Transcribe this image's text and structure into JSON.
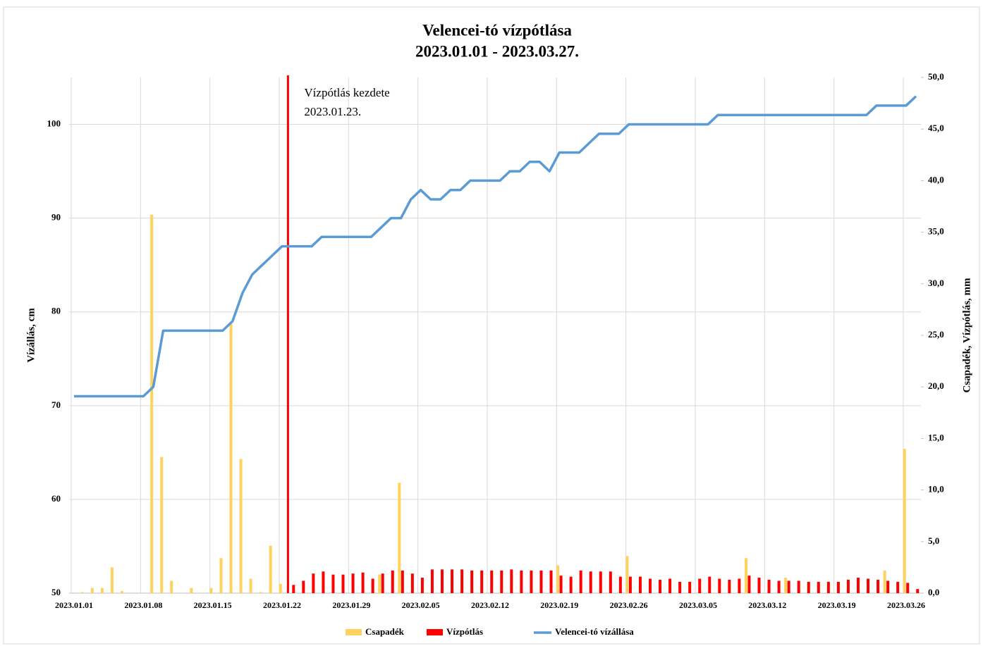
{
  "chart_data": {
    "type": "combo",
    "title": [
      "Velencei-tó vízpótlása",
      "2023.01.01 - 2023.03.27."
    ],
    "ylabel": "Vízállás, cm",
    "y2label": "Csapadék, Vízpótlás, mm",
    "annotation": [
      "Vízpótlás kezdete",
      "2023.01.23."
    ],
    "categories": [
      "2023.01.01",
      null,
      null,
      null,
      null,
      null,
      null,
      "2023.01.08",
      null,
      null,
      null,
      null,
      null,
      null,
      "2023.01.15",
      null,
      null,
      null,
      null,
      null,
      null,
      "2023.01.22",
      null,
      null,
      null,
      null,
      null,
      null,
      "2023.01.29",
      null,
      null,
      null,
      null,
      null,
      null,
      "2023.02.05",
      null,
      null,
      null,
      null,
      null,
      null,
      "2023.02.12",
      null,
      null,
      null,
      null,
      null,
      null,
      "2023.02.19",
      null,
      null,
      null,
      null,
      null,
      null,
      "2023.02.26",
      null,
      null,
      null,
      null,
      null,
      null,
      "2023.03.05",
      null,
      null,
      null,
      null,
      null,
      null,
      "2023.03.12",
      null,
      null,
      null,
      null,
      null,
      null,
      "2023.03.19",
      null,
      null,
      null,
      null,
      null,
      null,
      "2023.03.26",
      null
    ],
    "series": [
      {
        "name": "Csapadék",
        "type": "bar",
        "axis": "y2",
        "color": "#ffd25e",
        "values": [
          0,
          0.1,
          0.5,
          0.5,
          2.5,
          0.2,
          0,
          0,
          36.7,
          13.2,
          1.2,
          0,
          0.5,
          0,
          0.5,
          3.4,
          26.1,
          13,
          1.4,
          0.1,
          4.6,
          0.9,
          0,
          0,
          0,
          0,
          0,
          0,
          0,
          0,
          0,
          1.8,
          0,
          10.7,
          0,
          0,
          0,
          0,
          0,
          0,
          0,
          0,
          0,
          0,
          0,
          0,
          0,
          0,
          0,
          2.7,
          0,
          0,
          0,
          0,
          0,
          0,
          3.6,
          0,
          0,
          0,
          0,
          0,
          0,
          0,
          0,
          0,
          0,
          0,
          3.4,
          0,
          0,
          0,
          1.5,
          0,
          0,
          0,
          0,
          0,
          0,
          0,
          0,
          0,
          2.2,
          0,
          14,
          0
        ]
      },
      {
        "name": "Vízpótlás",
        "type": "bar",
        "axis": "y2",
        "color": "#ff0000",
        "values": [
          0,
          0,
          0,
          0,
          0,
          0,
          0,
          0,
          0,
          0,
          0,
          0,
          0,
          0,
          0,
          0,
          0,
          0,
          0,
          0,
          0,
          0,
          0.8,
          1.2,
          1.9,
          2.1,
          1.8,
          1.8,
          1.9,
          2.0,
          1.4,
          1.9,
          2.2,
          2.2,
          1.9,
          1.5,
          2.3,
          2.3,
          2.3,
          2.3,
          2.2,
          2.2,
          2.2,
          2.2,
          2.3,
          2.2,
          2.2,
          2.2,
          2.2,
          1.7,
          1.6,
          2.2,
          2.1,
          2.1,
          2.1,
          1.6,
          1.6,
          1.6,
          1.4,
          1.3,
          1.4,
          1.1,
          1.1,
          1.4,
          1.6,
          1.4,
          1.3,
          1.4,
          1.7,
          1.5,
          1.3,
          1.2,
          1.2,
          1.2,
          1.1,
          1.1,
          1.1,
          1.1,
          1.3,
          1.5,
          1.4,
          1.3,
          1.2,
          1.1,
          1.0,
          0.4
        ]
      },
      {
        "name": "Velencei-tó vízállása",
        "type": "line",
        "color": "#5b9bd5",
        "values": [
          71,
          71,
          71,
          71,
          71,
          71,
          71,
          71,
          72,
          78,
          78,
          78,
          78,
          78,
          78,
          78,
          79,
          82,
          84,
          85,
          86,
          87,
          87,
          87,
          87,
          88,
          88,
          88,
          88,
          88,
          88,
          89,
          90,
          90,
          92,
          93,
          92,
          92,
          93,
          93,
          94,
          94,
          94,
          94,
          95,
          95,
          96,
          96,
          95,
          97,
          97,
          97,
          98,
          99,
          99,
          99,
          100,
          100,
          100,
          100,
          100,
          100,
          100,
          100,
          100,
          101,
          101,
          101,
          101,
          101,
          101,
          101,
          101,
          101,
          101,
          101,
          101,
          101,
          101,
          101,
          101,
          102,
          102,
          102,
          102,
          103
        ]
      }
    ],
    "ylim": [
      50,
      105
    ],
    "yticks": [
      50,
      60,
      70,
      80,
      90,
      100
    ],
    "y2lim": [
      0,
      50
    ],
    "y2ticks": [
      {
        "value": 0,
        "label": "0,0"
      },
      {
        "value": 5,
        "label": "5,0"
      },
      {
        "value": 10,
        "label": "10,0"
      },
      {
        "value": 15,
        "label": "15,0"
      },
      {
        "value": 20,
        "label": "20,0"
      },
      {
        "value": 25,
        "label": "25,0"
      },
      {
        "value": 30,
        "label": "30,0"
      },
      {
        "value": 35,
        "label": "35,0"
      },
      {
        "value": 40,
        "label": "40,0"
      },
      {
        "value": 45,
        "label": "45,0"
      },
      {
        "value": 50,
        "label": "50,0"
      }
    ],
    "grid": true,
    "legend": "bottom"
  }
}
